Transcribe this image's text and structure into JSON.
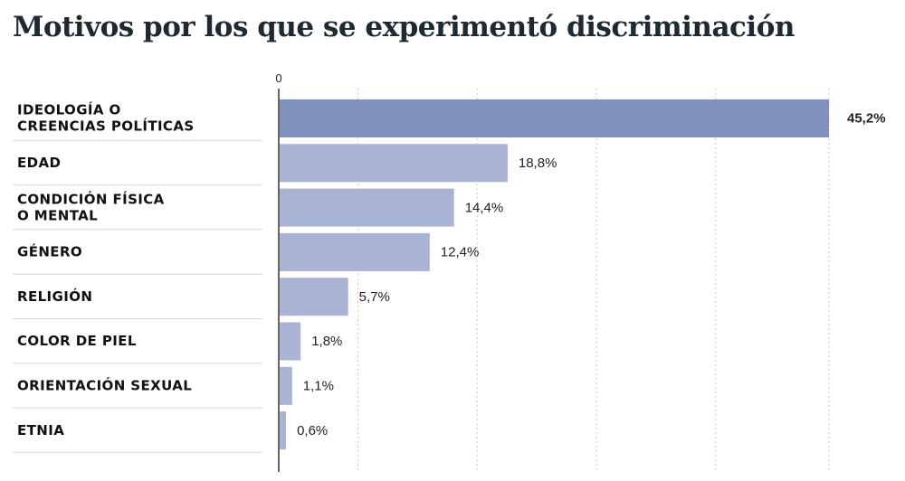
{
  "title": "Motivos por los que se experimentó discriminación",
  "colors": {
    "highlight": "#8091bf",
    "bar": "#a9b3d3",
    "grid": "#c9c9c9",
    "separator": "#d8d8d8",
    "axis": "#333333"
  },
  "chart_data": {
    "type": "bar",
    "orientation": "horizontal",
    "title": "Motivos por los que se experimentó discriminación",
    "categories": [
      [
        "IDEOLOGÍA O",
        "CREENCIAS POLÍTICAS"
      ],
      [
        "EDAD"
      ],
      [
        "CONDICIÓN FÍSICA",
        "O MENTAL"
      ],
      [
        "GÉNERO"
      ],
      [
        "RELIGIÓN"
      ],
      [
        "COLOR DE PIEL"
      ],
      [
        "ORIENTACIÓN SEXUAL"
      ],
      [
        "ETNIA"
      ]
    ],
    "values": [
      45.2,
      18.8,
      14.4,
      12.4,
      5.7,
      1.8,
      1.1,
      0.6
    ],
    "value_labels": [
      "45,2%",
      "18,8%",
      "14,4%",
      "12,4%",
      "5,7%",
      "1,8%",
      "1,1%",
      "0,6%"
    ],
    "highlight_index": 0,
    "xlim": [
      0,
      45.2
    ],
    "gridlines": [
      6.5,
      16.3,
      26.1,
      35.9,
      45.2
    ],
    "x_tick_labels": [
      {
        "value": 0,
        "label": "0"
      }
    ],
    "grid": true,
    "xlabel": "",
    "ylabel": ""
  }
}
